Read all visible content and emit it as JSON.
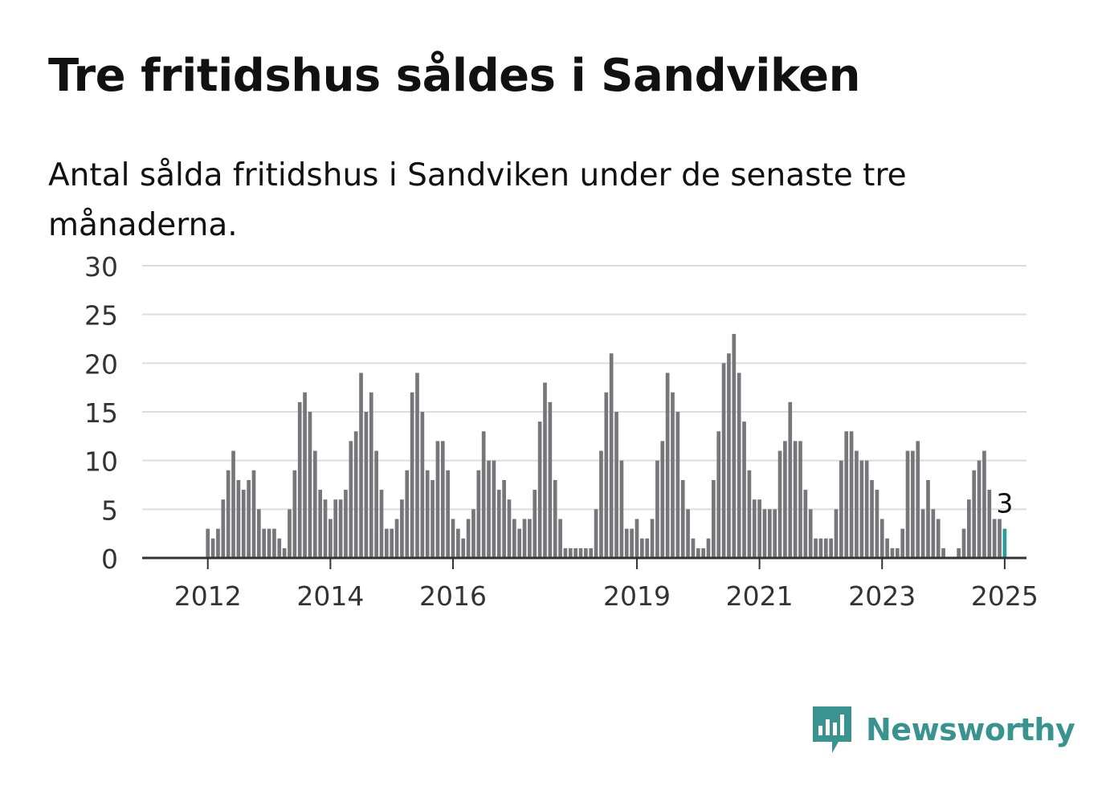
{
  "title": "Tre fritidshus såldes i Sandviken",
  "subtitle": "Antal sålda fritidshus i Sandviken under de senaste tre månaderna.",
  "brand": {
    "name": "Newsworthy",
    "color": "#3a938f",
    "icon": "newsworthy-logo-icon"
  },
  "colors": {
    "bar": "#77767b",
    "highlight": "#2a9d96",
    "grid": "#dddddd",
    "axis": "#333333"
  },
  "chart_data": {
    "type": "bar",
    "title": "",
    "xlabel": "",
    "ylabel": "",
    "ylim": [
      0,
      30
    ],
    "yticks": [
      0,
      5,
      10,
      15,
      20,
      25,
      30
    ],
    "grid": true,
    "legend": "none",
    "start": "2011-05",
    "frequency": "monthly",
    "xticks": [
      {
        "label": "2012",
        "index": 8
      },
      {
        "label": "2014",
        "index": 32
      },
      {
        "label": "2016",
        "index": 56
      },
      {
        "label": "2019",
        "index": 92
      },
      {
        "label": "2021",
        "index": 116
      },
      {
        "label": "2023",
        "index": 140
      },
      {
        "label": "2025",
        "index": 164
      }
    ],
    "values": [
      0,
      0,
      0,
      0,
      0,
      0,
      0,
      0,
      3,
      2,
      3,
      6,
      9,
      11,
      8,
      7,
      8,
      9,
      5,
      3,
      3,
      3,
      2,
      1,
      5,
      9,
      16,
      17,
      15,
      11,
      7,
      6,
      4,
      6,
      6,
      7,
      12,
      13,
      19,
      15,
      17,
      11,
      7,
      3,
      3,
      4,
      6,
      9,
      17,
      19,
      15,
      9,
      8,
      12,
      12,
      9,
      4,
      3,
      2,
      4,
      5,
      9,
      13,
      10,
      10,
      7,
      8,
      6,
      4,
      3,
      4,
      4,
      7,
      14,
      18,
      16,
      8,
      4,
      1,
      1,
      1,
      1,
      1,
      1,
      5,
      11,
      17,
      21,
      15,
      10,
      3,
      3,
      4,
      2,
      2,
      4,
      10,
      12,
      19,
      17,
      15,
      8,
      5,
      2,
      1,
      1,
      2,
      8,
      13,
      20,
      21,
      23,
      19,
      14,
      9,
      6,
      6,
      5,
      5,
      5,
      11,
      12,
      16,
      12,
      12,
      7,
      5,
      2,
      2,
      2,
      2,
      5,
      10,
      13,
      13,
      11,
      10,
      10,
      8,
      7,
      4,
      2,
      1,
      1,
      3,
      11,
      11,
      12,
      5,
      8,
      5,
      4,
      1,
      0,
      0,
      1,
      3,
      6,
      9,
      10,
      11,
      7,
      4,
      4,
      3
    ],
    "highlight_index": 164,
    "annotation": {
      "text": "3",
      "index": 164
    }
  }
}
